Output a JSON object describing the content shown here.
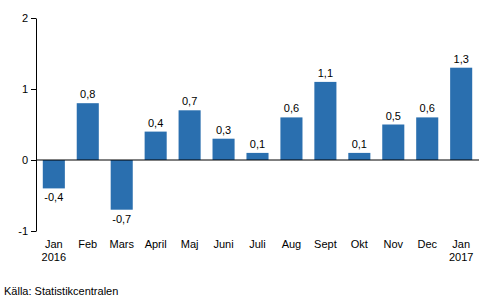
{
  "chart_data": {
    "type": "bar",
    "categories": [
      "Jan 2016",
      "Feb",
      "Mars",
      "April",
      "Maj",
      "Juni",
      "Juli",
      "Aug",
      "Sept",
      "Okt",
      "Nov",
      "Dec",
      "Jan 2017"
    ],
    "values": [
      -0.4,
      0.8,
      -0.7,
      0.4,
      0.7,
      0.3,
      0.1,
      0.6,
      1.1,
      0.1,
      0.5,
      0.6,
      1.3
    ],
    "value_labels": [
      "-0,4",
      "0,8",
      "-0,7",
      "0,4",
      "0,7",
      "0,3",
      "0,1",
      "0,6",
      "1,1",
      "0,1",
      "0,5",
      "0,6",
      "1,3"
    ],
    "color": "#2a6faf",
    "ylim": [
      -1,
      2
    ],
    "yticks": [
      -1,
      0,
      1,
      2
    ],
    "grid": false,
    "data_labels": true,
    "source": "Källa: Statistikcentralen"
  }
}
